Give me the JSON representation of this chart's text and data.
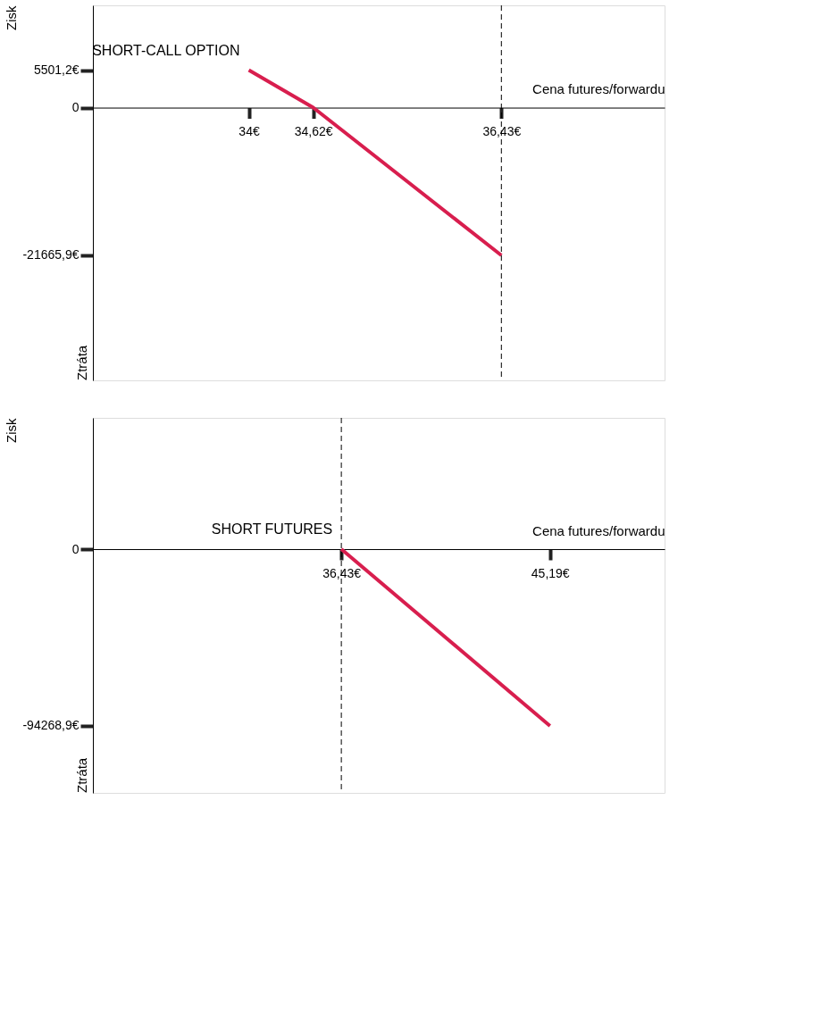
{
  "chart_data": [
    {
      "type": "line",
      "xlabel": "Cena futures/forwardu",
      "ylabel": "Zisk",
      "annotations": [
        "Ztráta"
      ],
      "series": [
        {
          "name": "SHORT-CALL OPTION",
          "color": "#d81e4e",
          "x": [
            34,
            34.62,
            36.43
          ],
          "values": [
            5501.2,
            0,
            -21665.9
          ]
        }
      ],
      "xlim": [
        32.5,
        38
      ],
      "ylim": [
        -40000,
        15000
      ],
      "xticks": [
        {
          "value": 34,
          "label": "34€"
        },
        {
          "value": 34.62,
          "label": "34,62€"
        },
        {
          "value": 36.43,
          "label": "36,43€"
        }
      ],
      "yticks": [
        {
          "value": 5501.2,
          "label": "5501,2€"
        },
        0,
        {
          "value": -21665.9,
          "label": "-21665,9€"
        }
      ],
      "ref_lines": [
        {
          "axis": "x",
          "value": 36.43,
          "color": "#000000",
          "line_style": "dashed"
        }
      ],
      "grid": false
    },
    {
      "type": "line",
      "xlabel": "Cena futures/forwardu",
      "ylabel": "Zisk",
      "annotations": [
        "Ztráta"
      ],
      "series": [
        {
          "name": "SHORT FUTURES",
          "color": "#d81e4e",
          "x": [
            36.43,
            45.19
          ],
          "values": [
            0,
            -94268.9
          ]
        }
      ],
      "xlim": [
        26,
        50
      ],
      "ylim": [
        -130000,
        70000
      ],
      "xticks": [
        {
          "value": 36.43,
          "label": "36,43€"
        },
        {
          "value": 45.19,
          "label": "45,19€"
        }
      ],
      "yticks": [
        0,
        {
          "value": -94268.9,
          "label": "-94268,9€"
        }
      ],
      "ref_lines": [
        {
          "axis": "x",
          "value": 36.43,
          "color": "#000000",
          "line_style": "dashed"
        }
      ],
      "grid": false
    }
  ]
}
